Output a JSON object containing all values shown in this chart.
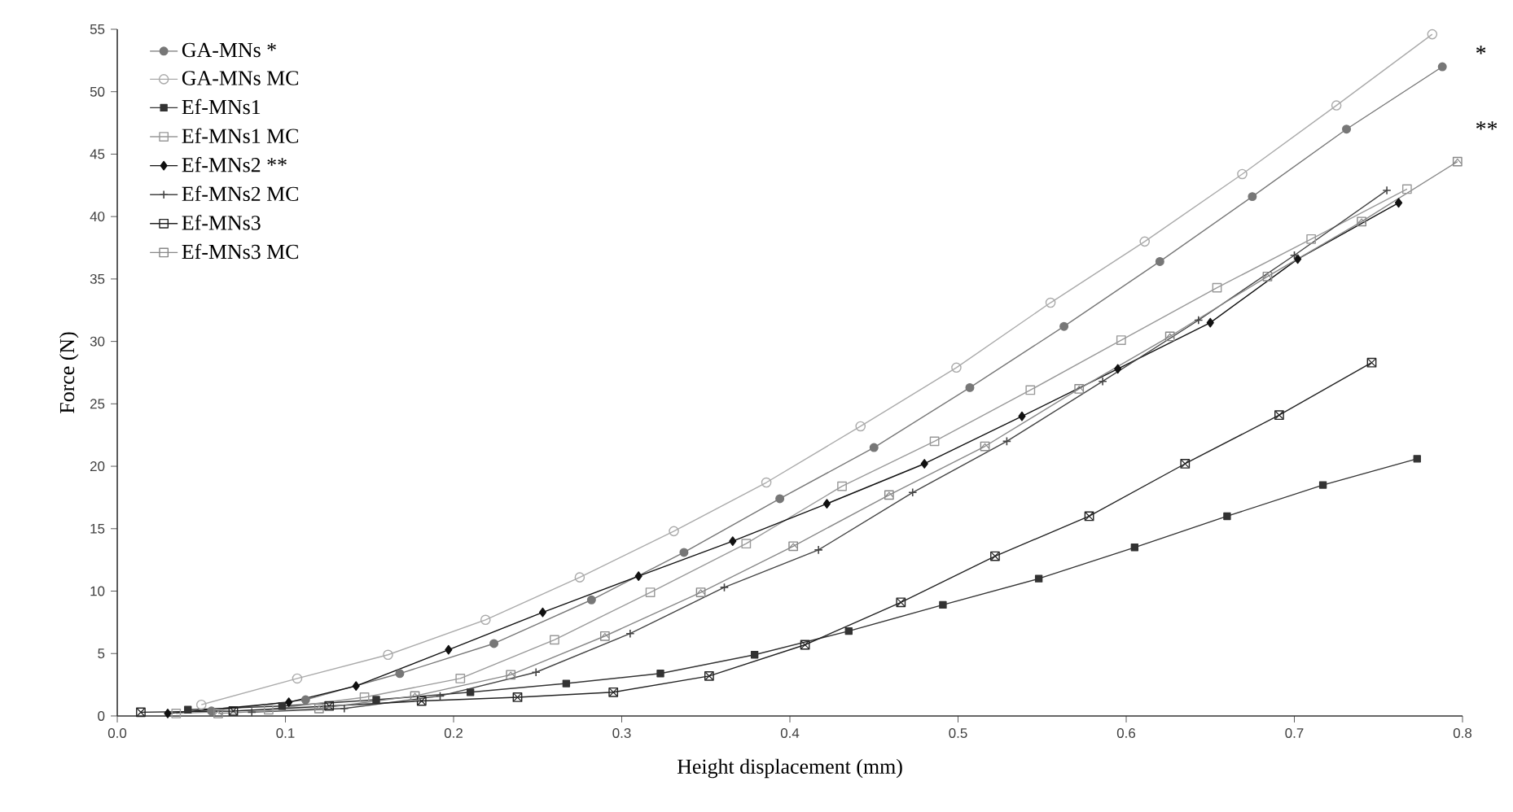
{
  "chart_data": {
    "type": "line",
    "xlabel": "Height displacement (mm)",
    "ylabel": "Force (N)",
    "xlim": [
      0,
      0.8
    ],
    "ylim": [
      0,
      55
    ],
    "xticks": [
      {
        "value": 0,
        "label": "0.0"
      },
      0.1,
      0.2,
      0.3,
      0.4,
      0.5,
      0.6,
      0.7,
      0.8
    ],
    "yticks": [
      0,
      5,
      10,
      15,
      20,
      25,
      30,
      35,
      40,
      45,
      50,
      55
    ],
    "legend": "top left",
    "grid": false,
    "annotations": [
      "*",
      "**"
    ],
    "series": [
      {
        "name": "GA-MNs *",
        "color": "#777777",
        "marker": "circle",
        "x": [
          0.056,
          0.112,
          0.168,
          0.224,
          0.282,
          0.337,
          0.394,
          0.45,
          0.507,
          0.563,
          0.62,
          0.675,
          0.731,
          0.788
        ],
        "values": [
          0.4,
          1.3,
          3.4,
          5.8,
          9.3,
          13.1,
          17.4,
          21.5,
          26.3,
          31.2,
          36.4,
          41.6,
          47.0,
          52.0
        ]
      },
      {
        "name": "GA-MNs MC",
        "color": "#aaaaaa",
        "marker": "circle open",
        "x": [
          0.05,
          0.107,
          0.161,
          0.219,
          0.275,
          0.331,
          0.386,
          0.442,
          0.499,
          0.555,
          0.611,
          0.669,
          0.725,
          0.782
        ],
        "values": [
          0.9,
          3.0,
          4.9,
          7.7,
          11.1,
          14.8,
          18.7,
          23.2,
          27.9,
          33.1,
          38.0,
          43.4,
          48.9,
          54.6
        ]
      },
      {
        "name": "Ef-MNs1",
        "color": "#333333",
        "marker": "square",
        "x": [
          0.042,
          0.098,
          0.154,
          0.21,
          0.267,
          0.323,
          0.379,
          0.435,
          0.491,
          0.548,
          0.605,
          0.66,
          0.717,
          0.773
        ],
        "values": [
          0.5,
          0.8,
          1.3,
          1.9,
          2.6,
          3.4,
          4.9,
          6.8,
          8.9,
          11.0,
          13.5,
          16.0,
          18.5,
          20.6
        ]
      },
      {
        "name": "Ef-MNs1 MC",
        "color": "#999999",
        "marker": "square open",
        "x": [
          0.035,
          0.09,
          0.147,
          0.204,
          0.26,
          0.317,
          0.374,
          0.431,
          0.486,
          0.543,
          0.597,
          0.654,
          0.71,
          0.767
        ],
        "values": [
          0.2,
          0.5,
          1.5,
          3.0,
          6.1,
          9.9,
          13.8,
          18.4,
          22.0,
          26.1,
          30.1,
          34.3,
          38.2,
          42.2
        ]
      },
      {
        "name": "Ef-MNs2 **",
        "color": "#111111",
        "marker": "diamond",
        "x": [
          0.03,
          0.102,
          0.142,
          0.197,
          0.253,
          0.31,
          0.366,
          0.422,
          0.48,
          0.538,
          0.595,
          0.65,
          0.702,
          0.762
        ],
        "values": [
          0.2,
          1.1,
          2.4,
          5.3,
          8.3,
          11.2,
          14.0,
          17.0,
          20.2,
          24.0,
          27.8,
          31.5,
          36.6,
          41.1
        ]
      },
      {
        "name": "Ef-MNs2 MC",
        "color": "#444444",
        "marker": "plus",
        "x": [
          0.08,
          0.135,
          0.192,
          0.249,
          0.305,
          0.361,
          0.417,
          0.473,
          0.529,
          0.586,
          0.643,
          0.7,
          0.755
        ],
        "values": [
          0.3,
          0.6,
          1.6,
          3.5,
          6.6,
          10.3,
          13.3,
          17.9,
          22.0,
          26.8,
          31.7,
          36.9,
          42.1
        ]
      },
      {
        "name": "Ef-MNs3",
        "color": "#222222",
        "marker": "square x",
        "x": [
          0.014,
          0.069,
          0.126,
          0.181,
          0.238,
          0.295,
          0.352,
          0.409,
          0.466,
          0.522,
          0.578,
          0.635,
          0.691,
          0.746
        ],
        "values": [
          0.3,
          0.4,
          0.8,
          1.2,
          1.5,
          1.9,
          3.2,
          5.7,
          9.1,
          12.8,
          16.0,
          20.2,
          24.1,
          28.3
        ]
      },
      {
        "name": "Ef-MNs3 MC",
        "color": "#888888",
        "marker": "square triangle",
        "x": [
          0.06,
          0.12,
          0.177,
          0.234,
          0.29,
          0.347,
          0.402,
          0.459,
          0.516,
          0.572,
          0.626,
          0.684,
          0.74,
          0.797
        ],
        "values": [
          0.2,
          0.6,
          1.6,
          3.3,
          6.4,
          9.9,
          13.6,
          17.7,
          21.6,
          26.2,
          30.4,
          35.2,
          39.6,
          44.4
        ]
      }
    ]
  }
}
